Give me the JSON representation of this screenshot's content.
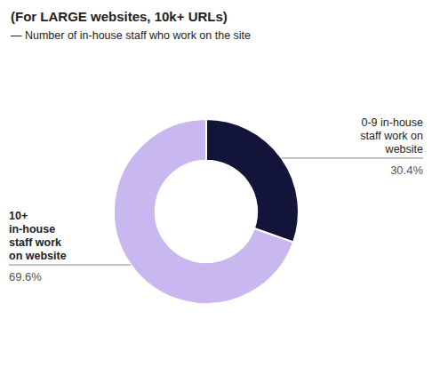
{
  "chart_data": {
    "type": "donut",
    "title": "(For LARGE websites, 10k+ URLs)",
    "subtitle": "— Number of in-house staff who work on the site",
    "categories": [
      "0-9 in-house\nstaff work on\nwebsite",
      "10+\nin-house\nstaff work\non website"
    ],
    "values": [
      30.4,
      69.6
    ],
    "value_labels": [
      "30.4%",
      "69.6%"
    ],
    "colors": [
      "#12143a",
      "#c9b8f0"
    ],
    "data_labels": true
  }
}
